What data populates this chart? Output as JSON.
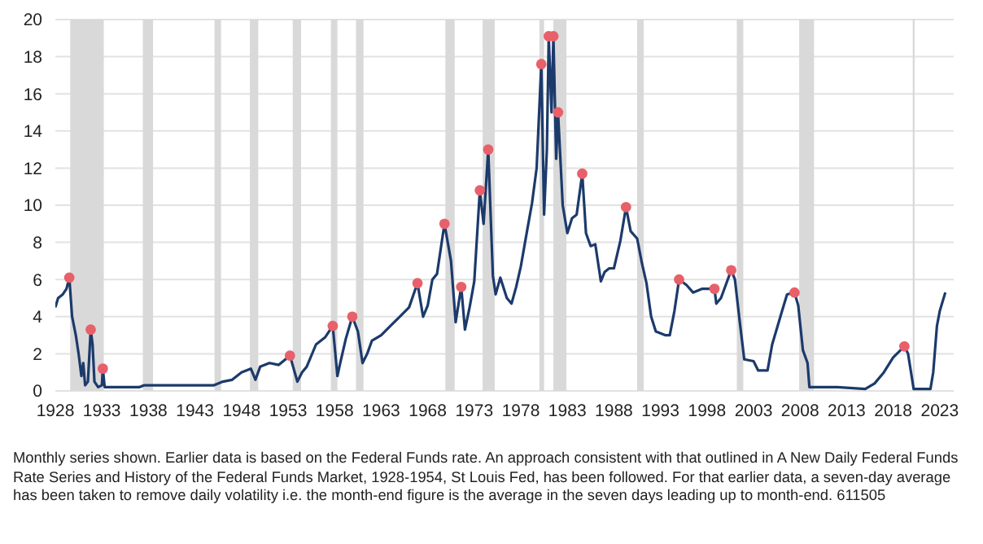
{
  "chart_data": {
    "type": "line",
    "xlim": [
      1928,
      2024.5
    ],
    "xticks": [
      1928,
      1933,
      1938,
      1943,
      1948,
      1953,
      1958,
      1963,
      1968,
      1973,
      1978,
      1983,
      1988,
      1993,
      1998,
      2003,
      2008,
      2013,
      2018,
      2023
    ],
    "ylim": [
      0,
      20
    ],
    "yticks": [
      0,
      2,
      4,
      6,
      8,
      10,
      12,
      14,
      16,
      18,
      20
    ],
    "grid": "y",
    "series": [
      {
        "color": "#1c3a6b",
        "x": [
          1928.0,
          1928.3,
          1928.8,
          1929.2,
          1929.5,
          1929.8,
          1930.2,
          1930.5,
          1930.8,
          1931.0,
          1931.2,
          1931.5,
          1931.8,
          1932.0,
          1932.2,
          1932.6,
          1933.0,
          1933.1,
          1933.3,
          1936,
          1937,
          1937.5,
          1945,
          1946,
          1947,
          1948,
          1949,
          1949.5,
          1950,
          1951,
          1952,
          1953.2,
          1954,
          1954.5,
          1955,
          1956,
          1957,
          1957.8,
          1958.3,
          1958.6,
          1959.2,
          1959.9,
          1960.5,
          1961.0,
          1961.5,
          1962,
          1963,
          1964,
          1965,
          1966.0,
          1966.9,
          1967.5,
          1968,
          1968.5,
          1969,
          1969.8,
          1970.5,
          1971.0,
          1971.6,
          1972.0,
          1972.5,
          1973.0,
          1973.6,
          1974.0,
          1974.5,
          1975.0,
          1975.3,
          1975.8,
          1976.5,
          1977.0,
          1977.5,
          1978.0,
          1978.7,
          1979.2,
          1979.7,
          1980.2,
          1980.5,
          1980.8,
          1981.0,
          1981.3,
          1981.5,
          1981.8,
          1982.0,
          1982.5,
          1983.0,
          1983.5,
          1984.0,
          1984.6,
          1985.0,
          1985.5,
          1986.0,
          1986.6,
          1987.0,
          1987.5,
          1988.0,
          1988.7,
          1989.3,
          1989.8,
          1990.5,
          1991.0,
          1991.5,
          1992.0,
          1992.5,
          1993.5,
          1994.0,
          1994.5,
          1995.0,
          1995.8,
          1996.5,
          1997.5,
          1998.8,
          1999.0,
          1999.5,
          2000.6,
          2001.0,
          2001.5,
          2002.0,
          2003.0,
          2003.5,
          2004.5,
          2005.0,
          2006.0,
          2006.6,
          2007.4,
          2007.8,
          2008.3,
          2008.8,
          2009.0,
          2010,
          2012,
          2015,
          2016,
          2017,
          2018,
          2019.2,
          2019.6,
          2020.2,
          2022.0,
          2022.3,
          2022.7,
          2023.0,
          2023.6
        ],
        "values": [
          4.5,
          5.0,
          5.2,
          5.5,
          6.1,
          4.0,
          3.0,
          2.0,
          0.8,
          1.5,
          0.3,
          0.5,
          3.3,
          2.5,
          0.5,
          0.2,
          0.3,
          1.2,
          0.2,
          0.2,
          0.2,
          0.3,
          0.3,
          0.5,
          0.6,
          1.0,
          1.2,
          0.6,
          1.3,
          1.5,
          1.4,
          1.9,
          0.5,
          1.0,
          1.3,
          2.5,
          2.9,
          3.5,
          0.8,
          1.5,
          2.8,
          4.0,
          3.2,
          1.5,
          2.0,
          2.7,
          3.0,
          3.5,
          4.0,
          4.5,
          5.8,
          4.0,
          4.6,
          6.0,
          6.3,
          9.0,
          7.0,
          3.7,
          5.6,
          3.3,
          4.5,
          5.9,
          10.8,
          9.0,
          13.0,
          6.2,
          5.2,
          6.1,
          5.0,
          4.7,
          5.6,
          6.7,
          8.7,
          10.1,
          12.0,
          17.6,
          9.5,
          13.0,
          19.1,
          15.0,
          19.1,
          12.5,
          15.0,
          10.0,
          8.5,
          9.3,
          9.5,
          11.7,
          8.5,
          7.8,
          7.9,
          5.9,
          6.4,
          6.6,
          6.6,
          8.1,
          9.9,
          8.6,
          8.2,
          6.9,
          5.8,
          4.0,
          3.2,
          3.0,
          3.0,
          4.3,
          6.0,
          5.7,
          5.3,
          5.5,
          5.5,
          4.7,
          5.0,
          6.5,
          6.0,
          3.8,
          1.7,
          1.6,
          1.1,
          1.1,
          2.5,
          4.2,
          5.2,
          5.3,
          4.6,
          2.2,
          1.5,
          0.2,
          0.2,
          0.2,
          0.1,
          0.4,
          1.0,
          1.8,
          2.4,
          2.0,
          0.1,
          0.1,
          1.0,
          3.5,
          4.3,
          5.3
        ]
      },
      {
        "type": "scatter",
        "color": "#e8606a",
        "x": [
          1929.5,
          1931.8,
          1933.1,
          1953.2,
          1957.8,
          1959.9,
          1966.9,
          1969.8,
          1971.6,
          1973.6,
          1974.5,
          1980.2,
          1981.0,
          1981.5,
          1982.0,
          1984.6,
          1989.3,
          1995.0,
          1998.8,
          2000.6,
          2007.4,
          2019.2
        ],
        "values": [
          6.1,
          3.3,
          1.2,
          1.9,
          3.5,
          4.0,
          5.8,
          9.0,
          5.6,
          10.8,
          13.0,
          17.6,
          19.1,
          19.1,
          15.0,
          11.7,
          9.9,
          6.0,
          5.5,
          6.5,
          5.3,
          2.4
        ]
      }
    ],
    "bands": [
      {
        "axis": "x",
        "from": 1929.6,
        "to": 1933.2,
        "color": "#d9d9d9"
      },
      {
        "axis": "x",
        "from": 1937.4,
        "to": 1938.5,
        "color": "#d9d9d9"
      },
      {
        "axis": "x",
        "from": 1945.1,
        "to": 1945.8,
        "color": "#d9d9d9"
      },
      {
        "axis": "x",
        "from": 1948.9,
        "to": 1949.8,
        "color": "#d9d9d9"
      },
      {
        "axis": "x",
        "from": 1953.5,
        "to": 1954.4,
        "color": "#d9d9d9"
      },
      {
        "axis": "x",
        "from": 1957.6,
        "to": 1958.3,
        "color": "#d9d9d9"
      },
      {
        "axis": "x",
        "from": 1960.3,
        "to": 1961.1,
        "color": "#d9d9d9"
      },
      {
        "axis": "x",
        "from": 1969.9,
        "to": 1970.9,
        "color": "#d9d9d9"
      },
      {
        "axis": "x",
        "from": 1973.9,
        "to": 1975.2,
        "color": "#d9d9d9"
      },
      {
        "axis": "x",
        "from": 1980.0,
        "to": 1980.5,
        "color": "#d9d9d9"
      },
      {
        "axis": "x",
        "from": 1981.5,
        "to": 1982.9,
        "color": "#d9d9d9"
      },
      {
        "axis": "x",
        "from": 1990.5,
        "to": 1991.2,
        "color": "#d9d9d9"
      },
      {
        "axis": "x",
        "from": 2001.2,
        "to": 2001.9,
        "color": "#d9d9d9"
      },
      {
        "axis": "x",
        "from": 2007.9,
        "to": 2009.5,
        "color": "#d9d9d9"
      },
      {
        "axis": "x",
        "from": 2020.1,
        "to": 2020.3,
        "color": "#d9d9d9"
      }
    ],
    "annotations": [
      "Monthly series shown. Earlier data is based on the Federal Funds rate. An approach consistent with that outlined in A New Daily Federal Funds Rate Series and History of the Federal Funds Market, 1928-1954, St Louis Fed, has been followed. For that earlier data, a seven-day average has been taken to remove daily volatility i.e. the month-end figure is the average in the seven days leading up to month-end. 611505"
    ]
  }
}
